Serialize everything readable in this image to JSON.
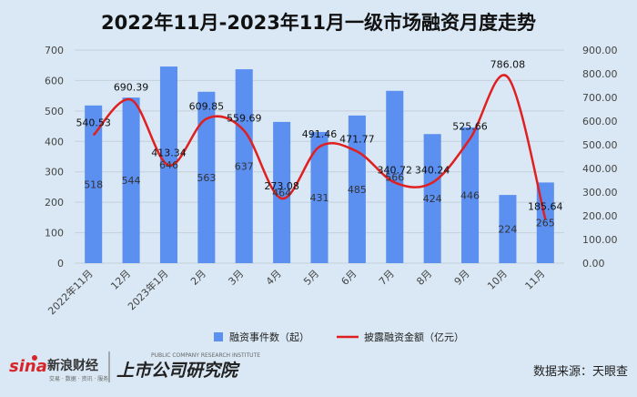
{
  "chart_data": {
    "type": "bar",
    "title": "2022年11月-2023年11月一级市场融资月度走势",
    "categories": [
      "2022年11月",
      "12月",
      "2023年1月",
      "2月",
      "3月",
      "4月",
      "5月",
      "6月",
      "7月",
      "8月",
      "9月",
      "10月",
      "11月"
    ],
    "series": [
      {
        "name": "融资事件数（起）",
        "type": "bar",
        "axis": "left",
        "color": "#5b8ff0",
        "values": [
          518,
          544,
          646,
          563,
          637,
          464,
          431,
          485,
          566,
          424,
          446,
          224,
          265
        ]
      },
      {
        "name": "披露融资金额（亿元）",
        "type": "line",
        "axis": "right",
        "color": "#e02020",
        "values": [
          540.53,
          690.39,
          413.34,
          609.85,
          559.69,
          273.08,
          491.46,
          471.77,
          340.72,
          340.24,
          525.66,
          786.08,
          185.64
        ]
      }
    ],
    "y_left": {
      "lim": [
        0,
        700
      ],
      "ticks": [
        "0",
        "100",
        "200",
        "300",
        "400",
        "500",
        "600",
        "700"
      ]
    },
    "y_right": {
      "lim": [
        0,
        900
      ],
      "ticks": [
        "0.00",
        "100.00",
        "200.00",
        "300.00",
        "400.00",
        "500.00",
        "600.00",
        "700.00",
        "800.00",
        "900.00"
      ]
    },
    "grid": true,
    "legend_position": "bottom"
  },
  "branding": {
    "sina_logo": "sina",
    "sina_name": "新浪财经",
    "sina_tags": "交易 · 数据 · 资讯 · 服务",
    "institute_name": "上市公司研究院",
    "institute_en": "PUBLIC COMPANY RESEARCH INSTITUTE"
  },
  "source": "数据来源：天眼查"
}
